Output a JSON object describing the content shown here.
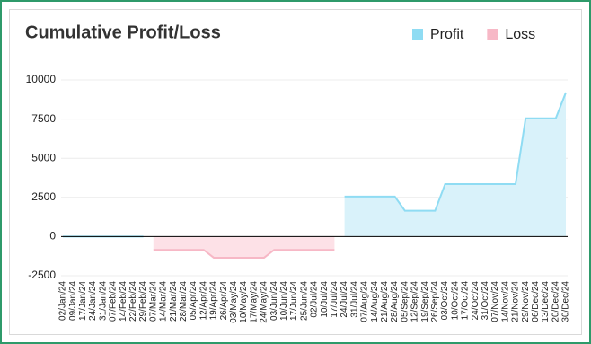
{
  "chart_data": {
    "type": "area",
    "title": "Cumulative Profit/Loss",
    "categories": [
      "02/Jan/24",
      "09/Jan/24",
      "17/Jan/24",
      "24/Jan/24",
      "31/Jan/24",
      "07/Feb/24",
      "14/Feb/24",
      "22/Feb/24",
      "29/Feb/24",
      "07/Mar/24",
      "14/Mar/24",
      "21/Mar/24",
      "28/Mar/24",
      "05/Apr/24",
      "12/Apr/24",
      "19/Apr/24",
      "26/Apr/24",
      "03/May/24",
      "10/May/24",
      "17/May/24",
      "24/May/24",
      "03/Jun/24",
      "10/Jun/24",
      "17/Jun/24",
      "25/Jun/24",
      "02/Jul/24",
      "10/Jul/24",
      "17/Jul/24",
      "24/Jul/24",
      "31/Jul/24",
      "07/Aug/24",
      "14/Aug/24",
      "21/Aug/24",
      "28/Aug/24",
      "05/Sep/24",
      "12/Sep/24",
      "19/Sep/24",
      "26/Sep/24",
      "03/Oct/24",
      "10/Oct/24",
      "17/Oct/24",
      "24/Oct/24",
      "31/Oct/24",
      "07/Nov/24",
      "14/Nov/24",
      "21/Nov/24",
      "29/Nov/24",
      "06/Dec/24",
      "13/Dec/24",
      "20/Dec/24",
      "30/Dec/24"
    ],
    "series": [
      {
        "name": "Profit",
        "color": "#8fdcf3",
        "values": [
          0,
          0,
          0,
          0,
          0,
          0,
          0,
          0,
          0,
          null,
          null,
          null,
          null,
          null,
          null,
          null,
          null,
          null,
          null,
          null,
          null,
          null,
          null,
          null,
          null,
          null,
          null,
          null,
          2550,
          2550,
          2550,
          2550,
          2550,
          2550,
          1650,
          1650,
          1650,
          1650,
          3350,
          3350,
          3350,
          3350,
          3350,
          3350,
          3350,
          3350,
          7550,
          7550,
          7550,
          7550,
          9200
        ]
      },
      {
        "name": "Loss",
        "color": "#f7b8c6",
        "values": [
          null,
          null,
          null,
          null,
          null,
          null,
          null,
          null,
          null,
          -850,
          -850,
          -850,
          -850,
          -850,
          -850,
          -1350,
          -1350,
          -1350,
          -1350,
          -1350,
          -1350,
          -850,
          -850,
          -850,
          -850,
          -850,
          -850,
          -850,
          null,
          null,
          null,
          null,
          null,
          null,
          null,
          null,
          null,
          null,
          null,
          null,
          null,
          null,
          null,
          null,
          null,
          null,
          null,
          null,
          null,
          null,
          null
        ]
      }
    ],
    "ylim": [
      -2500,
      10000
    ],
    "yticks": [
      -2500,
      0,
      2500,
      5000,
      7500,
      10000
    ],
    "grid": true
  }
}
